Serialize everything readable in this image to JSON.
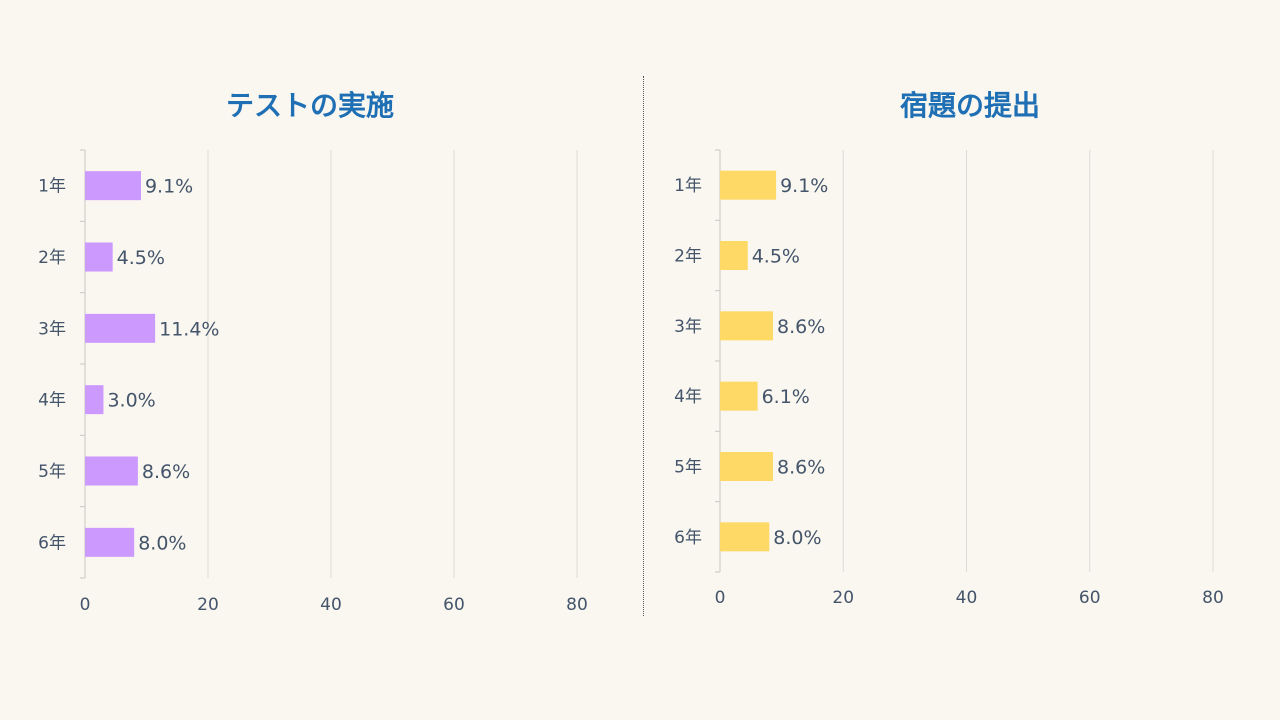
{
  "chart_data": [
    {
      "type": "bar",
      "orientation": "horizontal",
      "title": "テストの実施",
      "categories": [
        "1年",
        "2年",
        "3年",
        "4年",
        "5年",
        "6年"
      ],
      "values": [
        9.1,
        4.5,
        11.4,
        3.0,
        8.6,
        8.0
      ],
      "data_labels": [
        "9.1%",
        "4.5%",
        "11.4%",
        "3.0%",
        "8.6%",
        "8.0%"
      ],
      "xlim": [
        0,
        80
      ],
      "xticks": [
        "0",
        "20",
        "40",
        "60",
        "80"
      ],
      "grid": true,
      "color": "#cc99ff"
    },
    {
      "type": "bar",
      "orientation": "horizontal",
      "title": "宿題の提出",
      "categories": [
        "1年",
        "2年",
        "3年",
        "4年",
        "5年",
        "6年"
      ],
      "values": [
        9.1,
        4.5,
        8.6,
        6.1,
        8.6,
        8.0
      ],
      "data_labels": [
        "9.1%",
        "4.5%",
        "8.6%",
        "6.1%",
        "8.6%",
        "8.0%"
      ],
      "xlim": [
        0,
        80
      ],
      "xticks": [
        "0",
        "20",
        "40",
        "60",
        "80"
      ],
      "grid": true,
      "color": "#ffd966"
    }
  ]
}
